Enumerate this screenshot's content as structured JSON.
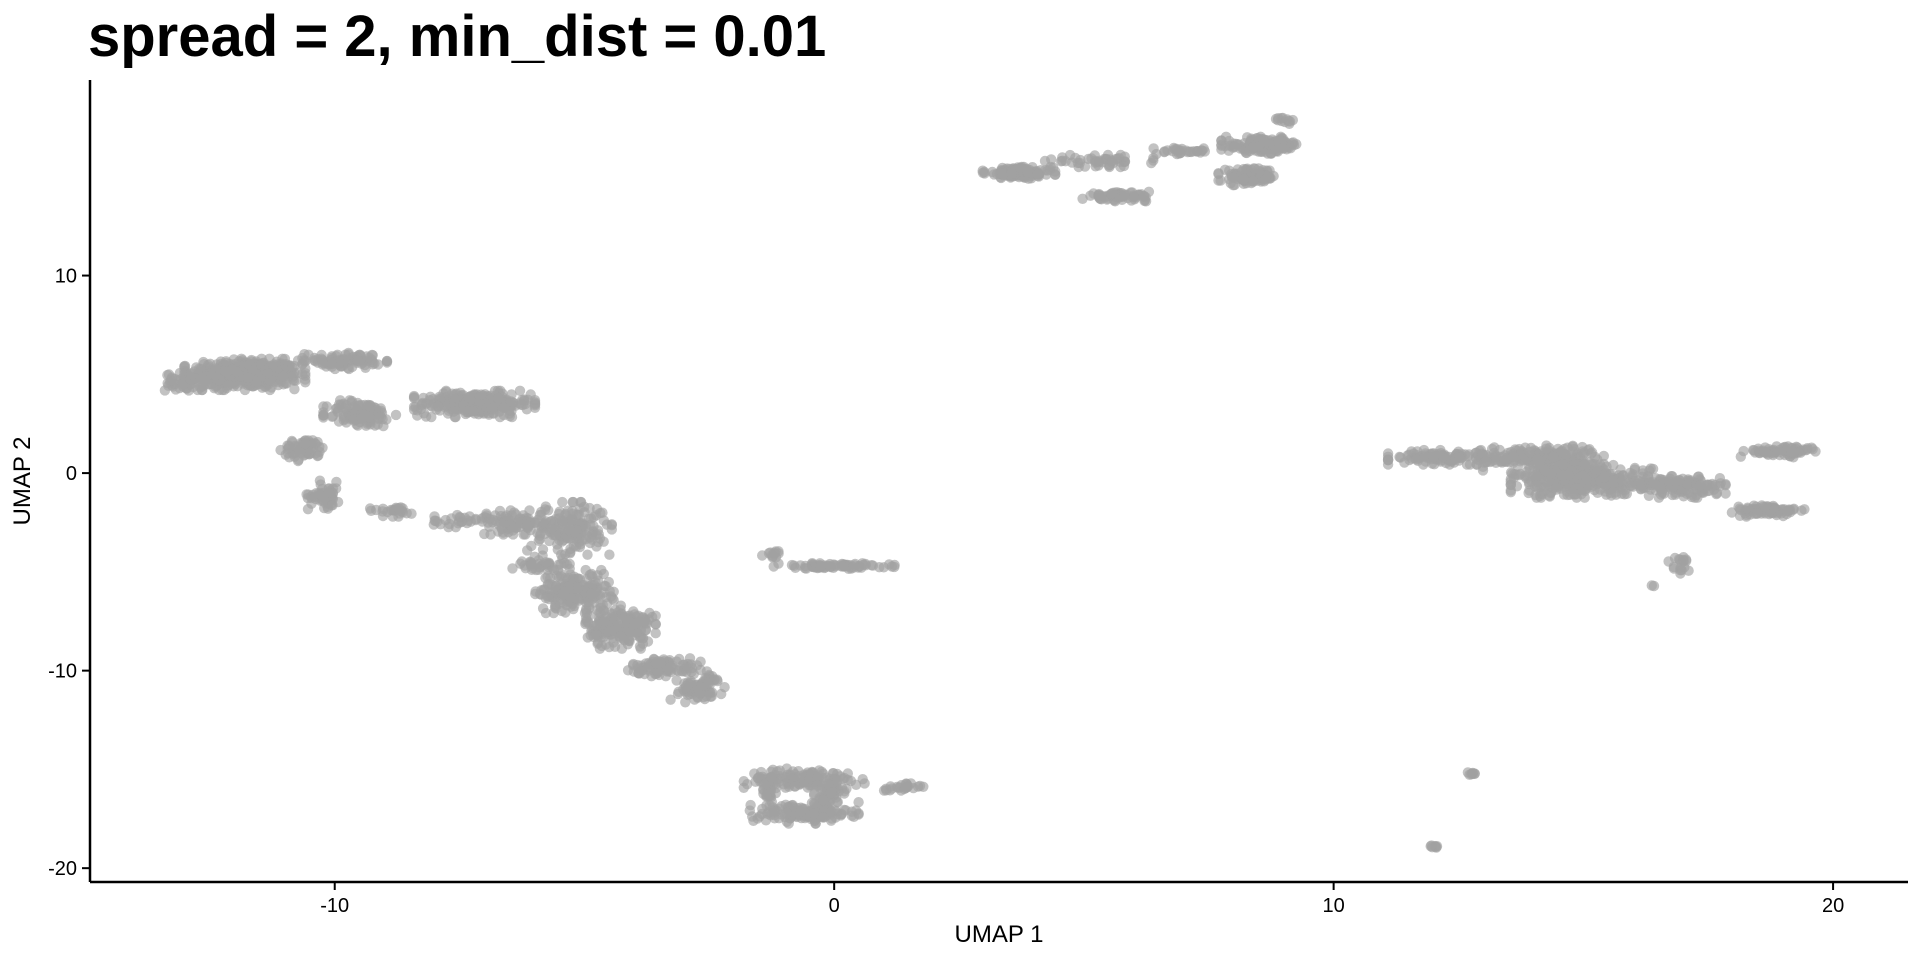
{
  "chart_data": {
    "type": "scatter",
    "title": "spread = 2, min_dist = 0.01",
    "xlabel": "UMAP 1",
    "ylabel": "UMAP 2",
    "xlim": [
      -14.9,
      21.5
    ],
    "ylim": [
      -20.7,
      19.9
    ],
    "xticks": [
      -10,
      0,
      10,
      20
    ],
    "xtick_labels": [
      "-10",
      "0",
      "10",
      "20"
    ],
    "yticks": [
      -20,
      -10,
      0,
      10
    ],
    "ytick_labels": [
      "-20",
      "-10",
      "0",
      "10"
    ],
    "grid": false,
    "legend": "none",
    "point_color": "#a2a2a2",
    "point_opacity": 0.65,
    "clusters": [
      {
        "center": [
          -11.8,
          5.0
        ],
        "spread": [
          1.0,
          0.65
        ],
        "n": 520
      },
      {
        "center": [
          -13.0,
          4.6
        ],
        "spread": [
          0.35,
          0.4
        ],
        "n": 50
      },
      {
        "center": [
          -9.8,
          5.7
        ],
        "spread": [
          0.7,
          0.35
        ],
        "n": 90
      },
      {
        "center": [
          -7.2,
          3.5
        ],
        "spread": [
          1.0,
          0.55
        ],
        "n": 300
      },
      {
        "center": [
          -9.5,
          3.0
        ],
        "spread": [
          0.6,
          0.6
        ],
        "n": 120
      },
      {
        "center": [
          -10.6,
          1.2
        ],
        "spread": [
          0.4,
          0.5
        ],
        "n": 60
      },
      {
        "center": [
          -10.2,
          -1.1
        ],
        "spread": [
          0.3,
          0.6
        ],
        "n": 55
      },
      {
        "center": [
          -8.8,
          -1.9
        ],
        "spread": [
          0.5,
          0.25
        ],
        "n": 25
      },
      {
        "center": [
          -7.5,
          -2.4
        ],
        "spread": [
          0.5,
          0.3
        ],
        "n": 30
      },
      {
        "center": [
          -6.4,
          -2.5
        ],
        "spread": [
          0.5,
          0.5
        ],
        "n": 80
      },
      {
        "center": [
          -5.9,
          -4.6
        ],
        "spread": [
          0.5,
          0.35
        ],
        "n": 40
      },
      {
        "center": [
          -5.3,
          -2.8
        ],
        "spread": [
          0.7,
          1.1
        ],
        "n": 180
      },
      {
        "center": [
          -5.2,
          -6.0
        ],
        "spread": [
          0.65,
          0.9
        ],
        "n": 200
      },
      {
        "center": [
          -4.3,
          -7.8
        ],
        "spread": [
          0.6,
          0.9
        ],
        "n": 200
      },
      {
        "center": [
          -3.4,
          -9.8
        ],
        "spread": [
          0.6,
          0.4
        ],
        "n": 90
      },
      {
        "center": [
          -2.8,
          -11.0
        ],
        "spread": [
          0.5,
          0.5
        ],
        "n": 70
      },
      {
        "center": [
          -2.5,
          -10.4
        ],
        "spread": [
          0.2,
          0.3
        ],
        "n": 15
      },
      {
        "center": [
          -0.6,
          -15.5
        ],
        "spread": [
          1.0,
          0.45
        ],
        "n": 140
      },
      {
        "center": [
          -0.6,
          -17.2
        ],
        "spread": [
          0.9,
          0.45
        ],
        "n": 150
      },
      {
        "center": [
          -0.1,
          -16.4
        ],
        "spread": [
          0.25,
          0.9
        ],
        "n": 60
      },
      {
        "center": [
          1.3,
          -15.9
        ],
        "spread": [
          0.4,
          0.2
        ],
        "n": 25
      },
      {
        "center": [
          -1.3,
          -16.1
        ],
        "spread": [
          0.15,
          0.6
        ],
        "n": 30
      },
      {
        "center": [
          0.0,
          -4.7
        ],
        "spread": [
          1.0,
          0.12
        ],
        "n": 80
      },
      {
        "center": [
          -1.2,
          -4.1
        ],
        "spread": [
          0.2,
          0.15
        ],
        "n": 12
      },
      {
        "center": [
          3.7,
          15.2
        ],
        "spread": [
          0.6,
          0.25
        ],
        "n": 160
      },
      {
        "center": [
          5.3,
          15.8
        ],
        "spread": [
          0.9,
          0.25
        ],
        "n": 50
      },
      {
        "center": [
          5.7,
          14.0
        ],
        "spread": [
          0.6,
          0.2
        ],
        "n": 70
      },
      {
        "center": [
          7.0,
          16.3
        ],
        "spread": [
          0.5,
          0.15
        ],
        "n": 30
      },
      {
        "center": [
          8.3,
          15.0
        ],
        "spread": [
          0.5,
          0.35
        ],
        "n": 100
      },
      {
        "center": [
          8.6,
          16.6
        ],
        "spread": [
          0.7,
          0.35
        ],
        "n": 160
      },
      {
        "center": [
          9.0,
          17.8
        ],
        "spread": [
          0.15,
          0.15
        ],
        "n": 12
      },
      {
        "center": [
          12.3,
          0.8
        ],
        "spread": [
          1.0,
          0.3
        ],
        "n": 120
      },
      {
        "center": [
          14.2,
          0.8
        ],
        "spread": [
          1.0,
          0.55
        ],
        "n": 200
      },
      {
        "center": [
          15.0,
          -0.4
        ],
        "spread": [
          1.2,
          0.7
        ],
        "n": 380
      },
      {
        "center": [
          17.0,
          -0.7
        ],
        "spread": [
          0.7,
          0.45
        ],
        "n": 130
      },
      {
        "center": [
          18.7,
          -1.9
        ],
        "spread": [
          0.6,
          0.25
        ],
        "n": 80
      },
      {
        "center": [
          19.0,
          1.1
        ],
        "spread": [
          0.7,
          0.25
        ],
        "n": 70
      },
      {
        "center": [
          16.9,
          -4.6
        ],
        "spread": [
          0.2,
          0.4
        ],
        "n": 18
      },
      {
        "center": [
          16.4,
          -5.7
        ],
        "spread": [
          0.05,
          0.05
        ],
        "n": 2
      },
      {
        "center": [
          12.8,
          -15.2
        ],
        "spread": [
          0.1,
          0.06
        ],
        "n": 8
      },
      {
        "center": [
          12.0,
          -18.9
        ],
        "spread": [
          0.08,
          0.06
        ],
        "n": 8
      }
    ]
  }
}
